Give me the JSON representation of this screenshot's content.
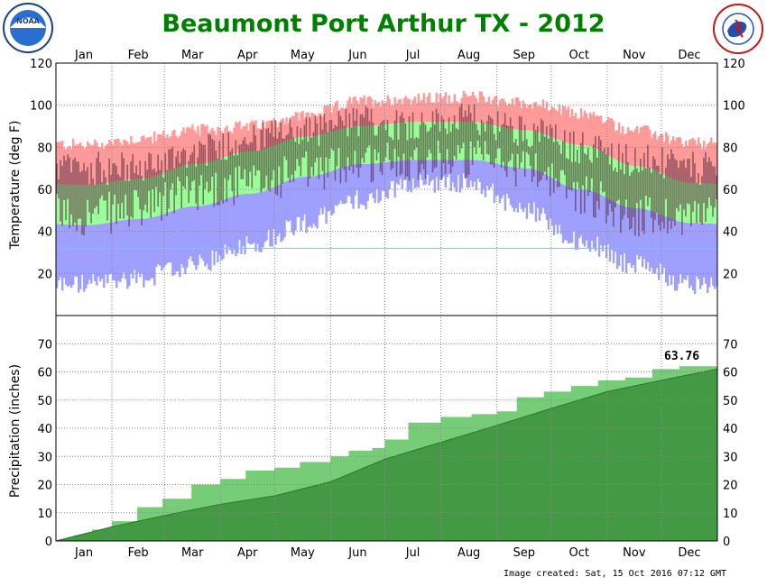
{
  "title": "Beaumont Port Arthur TX - 2012",
  "footer": "Image created: Sat, 15 Oct 2016 07:12 GMT",
  "logos": {
    "left": {
      "icon": "noaa-logo-icon",
      "text": "NOAA"
    },
    "right": {
      "icon": "nws-logo-icon",
      "text": "NATIONAL WEATHER SERVICE"
    }
  },
  "colors": {
    "record_high": "#ff9a9a",
    "normal_range": "#99ff99",
    "record_low": "#9f9fff",
    "observed": "#6a3a4a",
    "freezing_line": "#00ffff",
    "precip_observed": "#77cc77",
    "precip_normal": "#449944"
  },
  "chart_data": [
    {
      "type": "bar",
      "name": "temperature",
      "ylabel": "Temperature (deg F)",
      "ylim": [
        0,
        120
      ],
      "yticks": [
        20,
        40,
        60,
        80,
        100,
        120
      ],
      "months": [
        "Jan",
        "Feb",
        "Mar",
        "Apr",
        "May",
        "Jun",
        "Jul",
        "Aug",
        "Sep",
        "Oct",
        "Nov",
        "Dec"
      ],
      "days": 366,
      "grid": true,
      "freezing_line": 32,
      "normal_high_by_month": [
        62,
        65,
        72,
        78,
        85,
        90,
        92,
        92,
        88,
        81,
        71,
        63
      ],
      "normal_low_by_month": [
        43,
        46,
        52,
        58,
        66,
        72,
        74,
        74,
        70,
        60,
        51,
        44
      ],
      "record_high_by_month": [
        81,
        84,
        88,
        90,
        95,
        102,
        103,
        104,
        101,
        96,
        88,
        82
      ],
      "record_low_by_month": [
        15,
        18,
        24,
        34,
        44,
        55,
        63,
        63,
        50,
        35,
        24,
        15
      ],
      "observed_high_by_month": [
        70,
        70,
        78,
        84,
        88,
        92,
        91,
        93,
        88,
        80,
        74,
        70
      ],
      "observed_low_by_month": [
        48,
        50,
        60,
        62,
        68,
        73,
        74,
        74,
        71,
        58,
        47,
        48
      ]
    },
    {
      "type": "area",
      "name": "precipitation",
      "ylabel": "Precipitation (inches)",
      "ylim": [
        0,
        80
      ],
      "yticks": [
        0,
        10,
        20,
        30,
        40,
        50,
        60,
        70
      ],
      "months": [
        "Jan",
        "Feb",
        "Mar",
        "Apr",
        "May",
        "Jun",
        "Jul",
        "Aug",
        "Sep",
        "Oct",
        "Nov",
        "Dec"
      ],
      "grid": true,
      "observed_total": "63.76",
      "observed_cumulative": [
        [
          0,
          0
        ],
        [
          10,
          2
        ],
        [
          20,
          4
        ],
        [
          31,
          7
        ],
        [
          45,
          12
        ],
        [
          59,
          15
        ],
        [
          75,
          20
        ],
        [
          91,
          22
        ],
        [
          105,
          25
        ],
        [
          121,
          26
        ],
        [
          135,
          28
        ],
        [
          152,
          30
        ],
        [
          162,
          32
        ],
        [
          175,
          33
        ],
        [
          182,
          36
        ],
        [
          195,
          42
        ],
        [
          213,
          44
        ],
        [
          230,
          45
        ],
        [
          244,
          46
        ],
        [
          255,
          51
        ],
        [
          270,
          53
        ],
        [
          285,
          55
        ],
        [
          300,
          57
        ],
        [
          315,
          58
        ],
        [
          330,
          61
        ],
        [
          345,
          62
        ],
        [
          366,
          64
        ]
      ],
      "normal_cumulative": [
        [
          0,
          0
        ],
        [
          31,
          5
        ],
        [
          60,
          9
        ],
        [
          91,
          13
        ],
        [
          121,
          16
        ],
        [
          152,
          21
        ],
        [
          182,
          29
        ],
        [
          213,
          35
        ],
        [
          244,
          41
        ],
        [
          274,
          47
        ],
        [
          305,
          53
        ],
        [
          335,
          57
        ],
        [
          366,
          61
        ]
      ]
    }
  ]
}
